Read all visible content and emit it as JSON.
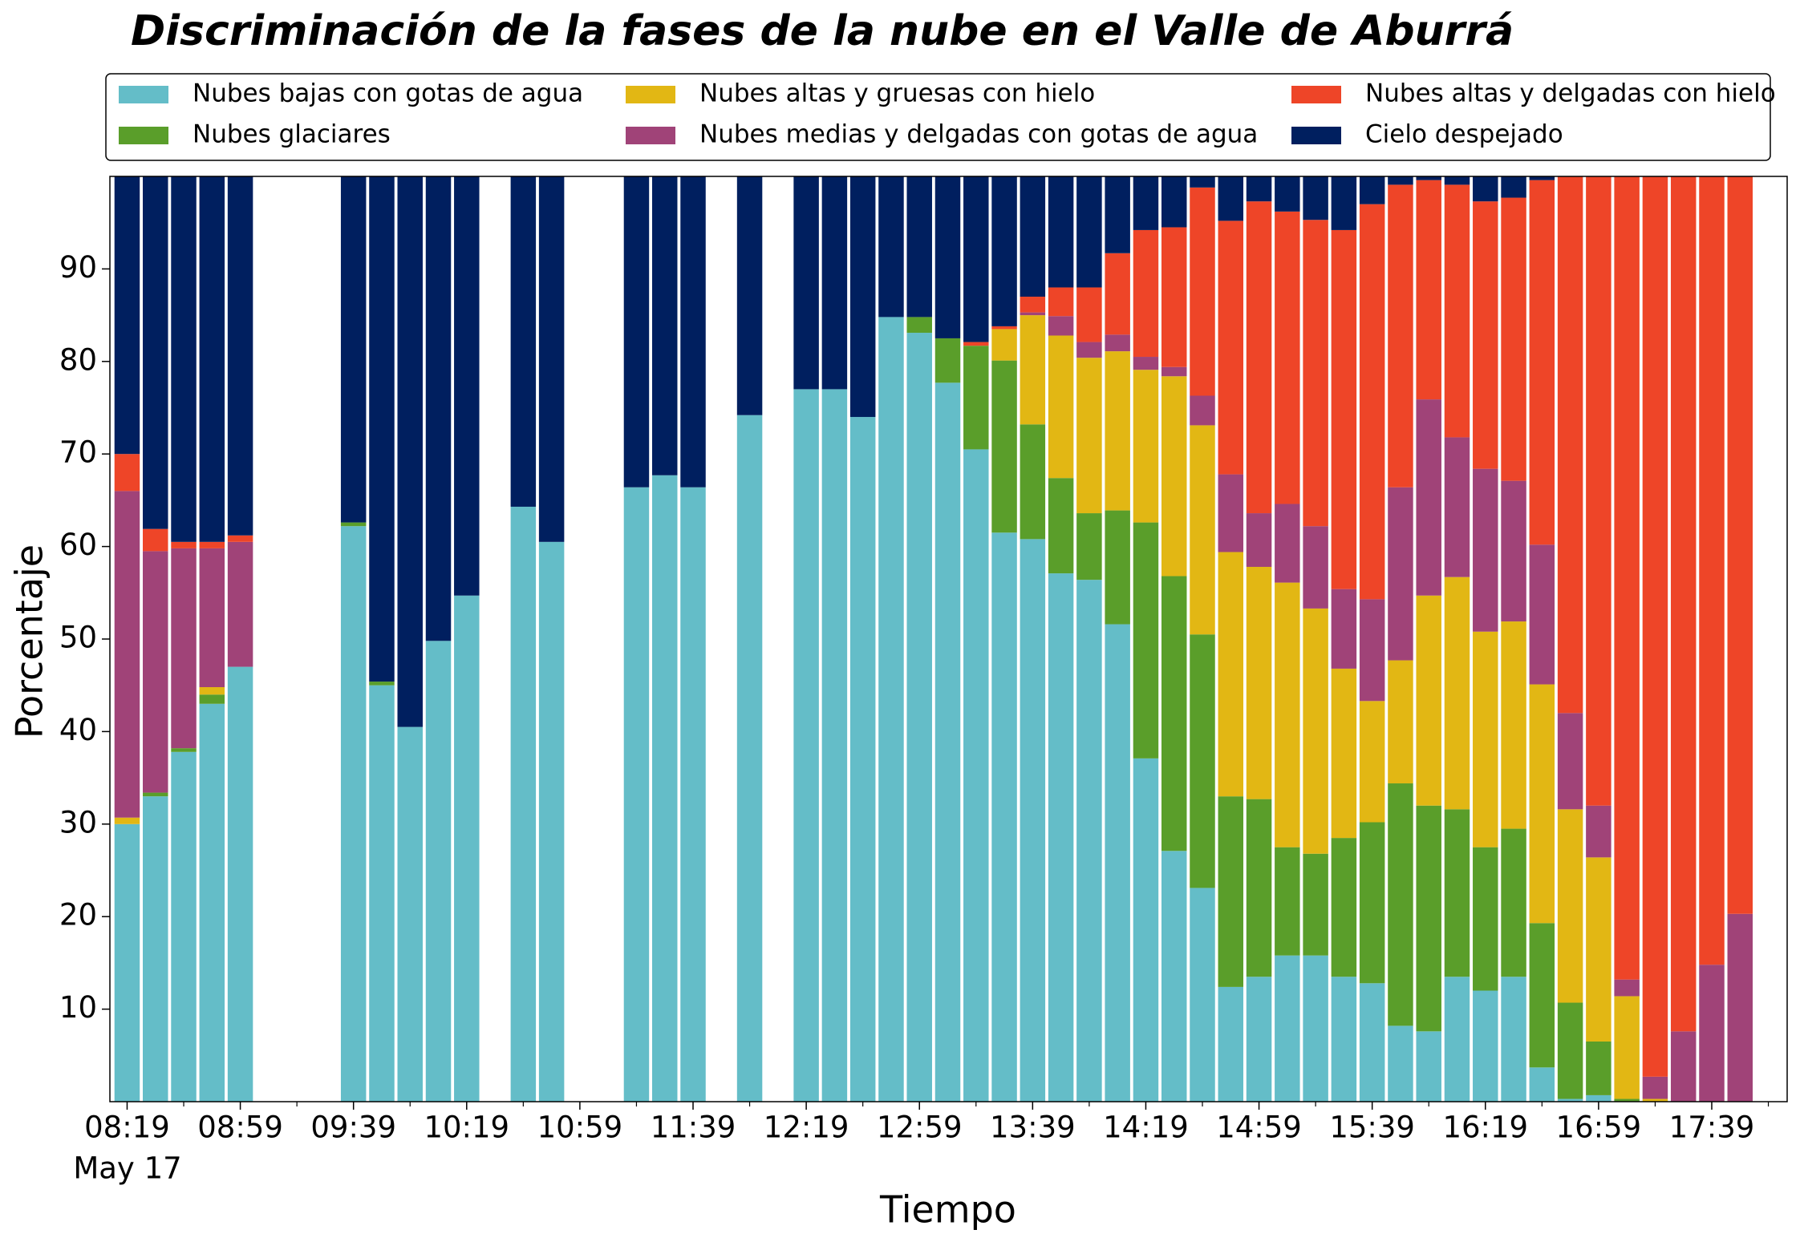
{
  "chart_data": {
    "type": "stacked_bar",
    "title": "Discriminación de la fases de la nube en el Valle de Aburrá",
    "x_label": "Tiempo",
    "y_label": "Porcentaje",
    "date_label": "May 17",
    "categories": [
      "08:19",
      null,
      null,
      null,
      "08:59",
      null,
      null,
      null,
      "09:39",
      null,
      null,
      null,
      "10:19",
      null,
      null,
      null,
      "10:59",
      null,
      null,
      null,
      "11:39",
      null,
      null,
      null,
      "12:19",
      null,
      null,
      null,
      "12:59",
      null,
      null,
      null,
      "13:39",
      null,
      null,
      null,
      "14:19",
      null,
      null,
      null,
      "14:59",
      null,
      null,
      null,
      "15:39",
      null,
      null,
      null,
      "16:19",
      null,
      null,
      null,
      "16:59",
      null,
      null,
      null,
      "17:39",
      null
    ],
    "ylim": [
      0,
      100
    ],
    "yticks": [
      10,
      20,
      30,
      40,
      50,
      60,
      70,
      80,
      90
    ],
    "legend": "upper center",
    "series": [
      {
        "name": "Nubes bajas con gotas de agua",
        "color": "#64bdc8",
        "values": [
          30,
          33,
          37.8,
          43,
          47,
          null,
          null,
          null,
          62.2,
          45,
          40.5,
          49.8,
          54.7,
          null,
          64.3,
          60.5,
          null,
          null,
          66.4,
          67.7,
          66.4,
          null,
          74.2,
          null,
          77,
          77,
          74,
          84.8,
          83.1,
          77.7,
          70.5,
          61.5,
          60.8,
          57.1,
          56.4,
          51.6,
          37.1,
          27.1,
          23.1,
          12.4,
          13.5,
          15.8,
          15.8,
          13.5,
          12.8,
          8.2,
          7.6,
          13.5,
          12,
          13.5,
          3.7,
          0.3,
          0.7,
          0,
          0,
          0,
          0,
          0
        ]
      },
      {
        "name": "Nubes glaciares",
        "color": "#5a9e2a",
        "values": [
          0,
          0.4,
          0.4,
          1,
          0,
          null,
          null,
          null,
          0.4,
          0.4,
          0,
          0,
          0,
          null,
          0,
          0,
          null,
          null,
          0,
          0,
          0,
          null,
          0,
          null,
          0,
          0,
          0,
          0,
          1.7,
          4.8,
          11.2,
          18.6,
          12.4,
          10.3,
          7.2,
          12.3,
          25.5,
          29.7,
          27.4,
          20.6,
          19.2,
          11.7,
          11,
          15,
          17.4,
          26.2,
          24.4,
          18.1,
          15.5,
          16,
          15.6,
          10.4,
          5.8,
          0.3,
          0,
          0,
          0,
          0
        ]
      },
      {
        "name": "Nubes altas y gruesas con hielo",
        "color": "#e2b714",
        "values": [
          0.7,
          0,
          0,
          0.8,
          0,
          null,
          null,
          null,
          0,
          0,
          0,
          0,
          0,
          null,
          0,
          0,
          null,
          null,
          0,
          0,
          0,
          null,
          0,
          null,
          0,
          0,
          0,
          0,
          0,
          0,
          0,
          3.4,
          11.8,
          15.4,
          16.8,
          17.2,
          16.5,
          21.6,
          22.6,
          26.4,
          25.1,
          28.6,
          26.5,
          18.3,
          13.1,
          13.3,
          22.7,
          25.1,
          23.3,
          22.4,
          25.8,
          20.9,
          19.9,
          11.1,
          0.3,
          0,
          0,
          0
        ]
      },
      {
        "name": "Nubes medias y delgadas con gotas de agua",
        "color": "#a04378",
        "values": [
          35.3,
          26.1,
          21.6,
          15,
          13.5,
          null,
          null,
          null,
          0,
          0,
          0,
          0,
          0,
          null,
          0,
          0,
          null,
          null,
          0,
          0,
          0,
          null,
          0,
          null,
          0,
          0,
          0,
          0,
          0,
          0,
          0,
          0,
          0.3,
          2.1,
          1.7,
          1.8,
          1.4,
          1,
          3.2,
          8.4,
          5.8,
          8.5,
          8.9,
          8.6,
          11,
          18.7,
          21.2,
          15.1,
          17.6,
          15.2,
          15.1,
          10.4,
          5.6,
          1.8,
          2.4,
          7.6,
          14.8,
          20.3
        ]
      },
      {
        "name": "Nubes altas y delgadas con hielo",
        "color": "#ee4528",
        "values": [
          4,
          2.4,
          0.7,
          0.7,
          0.7,
          null,
          null,
          null,
          0,
          0,
          0,
          0,
          0,
          null,
          0,
          0,
          null,
          null,
          0,
          0,
          0,
          null,
          0,
          null,
          0,
          0,
          0,
          0,
          0,
          0,
          0.4,
          0.3,
          1.7,
          3.1,
          5.9,
          8.8,
          13.7,
          15.1,
          22.5,
          27.4,
          33.7,
          31.6,
          33.1,
          38.8,
          42.7,
          32.7,
          23.7,
          27.3,
          28.9,
          30.6,
          39.4,
          58,
          68,
          86.8,
          97.3,
          92.4,
          85.2,
          79.7
        ]
      },
      {
        "name": "Cielo despejado",
        "color": "#001f5f",
        "values": [
          30,
          38.1,
          39.5,
          39.5,
          38.8,
          null,
          null,
          null,
          37.4,
          54.6,
          59.5,
          50.2,
          45.3,
          null,
          35.7,
          39.5,
          null,
          null,
          33.6,
          32.3,
          33.6,
          null,
          25.8,
          null,
          23,
          23,
          26,
          15.2,
          15.2,
          17.5,
          17.9,
          16.2,
          13,
          12,
          12,
          8.3,
          5.8,
          5.5,
          1.2,
          4.8,
          2.7,
          3.8,
          4.7,
          5.8,
          3,
          0.9,
          0.4,
          0.9,
          2.7,
          2.3,
          0.4,
          0,
          0,
          0,
          0,
          0,
          0,
          0
        ]
      }
    ]
  }
}
